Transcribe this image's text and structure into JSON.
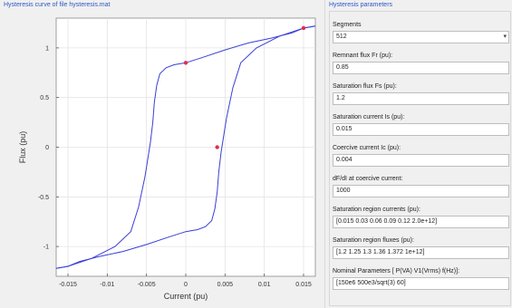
{
  "left_panel": {
    "title": "Hysteresis curve of file hysteresis.mat"
  },
  "right_panel": {
    "title": "Hysteresis parameters",
    "fields": [
      {
        "label": "Segments",
        "value": "512",
        "type": "select"
      },
      {
        "label": "Remnant flux Fr (pu):",
        "value": "0.85"
      },
      {
        "label": "Saturation flux Fs (pu):",
        "value": "1.2"
      },
      {
        "label": "Saturation current Is (pu):",
        "value": "0.015"
      },
      {
        "label": "Coercive current Ic (pu):",
        "value": "0.004"
      },
      {
        "label": "dF/dI at coercive current:",
        "value": "1000"
      },
      {
        "label": "Saturation region currents (pu):",
        "value": "[0.015 0.03 0.06 0.09 0.12 2.0e+12]"
      },
      {
        "label": "Saturation region fluxes (pu):",
        "value": "[1.2 1.25 1.3 1.36 1.372 1e+12]"
      },
      {
        "label": "Nominal Parameters [ P(VA) V1(Vrms) f(Hz)]:",
        "value": "[150e6 500e3/sqrt(3) 60]"
      }
    ]
  },
  "colors": {
    "curve": "#3a3fd6",
    "marker": "#e0304a",
    "title": "#2a57c9"
  },
  "chart_data": {
    "type": "line",
    "title": "",
    "xlabel": "Current (pu)",
    "ylabel": "Flux (pu)",
    "xlim": [
      -0.0165,
      0.0165
    ],
    "ylim": [
      -1.3,
      1.3
    ],
    "xticks": [
      -0.015,
      -0.01,
      -0.005,
      0,
      0.005,
      0.01,
      0.015
    ],
    "xtick_labels": [
      "-0.015",
      "-0.01",
      "-0.005",
      "0",
      "0.005",
      "0.01",
      "0.015"
    ],
    "yticks": [
      -1,
      -0.5,
      0,
      0.5,
      1
    ],
    "ytick_labels": [
      "-1",
      "-0.5",
      "0",
      "0.5",
      "1"
    ],
    "grid": true,
    "series": [
      {
        "values_x": [
          -0.0165,
          -0.015,
          -0.012,
          -0.009,
          -0.007,
          -0.006,
          -0.0052,
          -0.0048,
          -0.0045,
          -0.0042,
          -0.004,
          -0.0037,
          -0.0033,
          -0.0025,
          -0.0015,
          0.0,
          0.002,
          0.005,
          0.008,
          0.011,
          0.0135,
          0.015,
          0.0165
        ],
        "values_y": [
          -1.22,
          -1.2,
          -1.12,
          -1.0,
          -0.85,
          -0.6,
          -0.3,
          -0.1,
          0.05,
          0.25,
          0.45,
          0.62,
          0.74,
          0.8,
          0.83,
          0.85,
          0.9,
          0.98,
          1.05,
          1.1,
          1.15,
          1.2,
          1.22
        ]
      },
      {
        "values_x": [
          0.0165,
          0.015,
          0.012,
          0.009,
          0.007,
          0.006,
          0.0052,
          0.0048,
          0.0045,
          0.0042,
          0.004,
          0.0037,
          0.0033,
          0.0025,
          0.0015,
          0.0,
          -0.002,
          -0.005,
          -0.008,
          -0.011,
          -0.0135,
          -0.015,
          -0.0165
        ],
        "values_y": [
          1.22,
          1.2,
          1.12,
          1.0,
          0.85,
          0.6,
          0.3,
          0.1,
          -0.05,
          -0.25,
          -0.45,
          -0.62,
          -0.74,
          -0.8,
          -0.83,
          -0.85,
          -0.9,
          -0.98,
          -1.05,
          -1.1,
          -1.15,
          -1.2,
          -1.22
        ]
      }
    ],
    "markers": [
      {
        "x": 0.0,
        "y": 0.85
      },
      {
        "x": 0.004,
        "y": 0.0
      },
      {
        "x": 0.015,
        "y": 1.2
      }
    ]
  }
}
